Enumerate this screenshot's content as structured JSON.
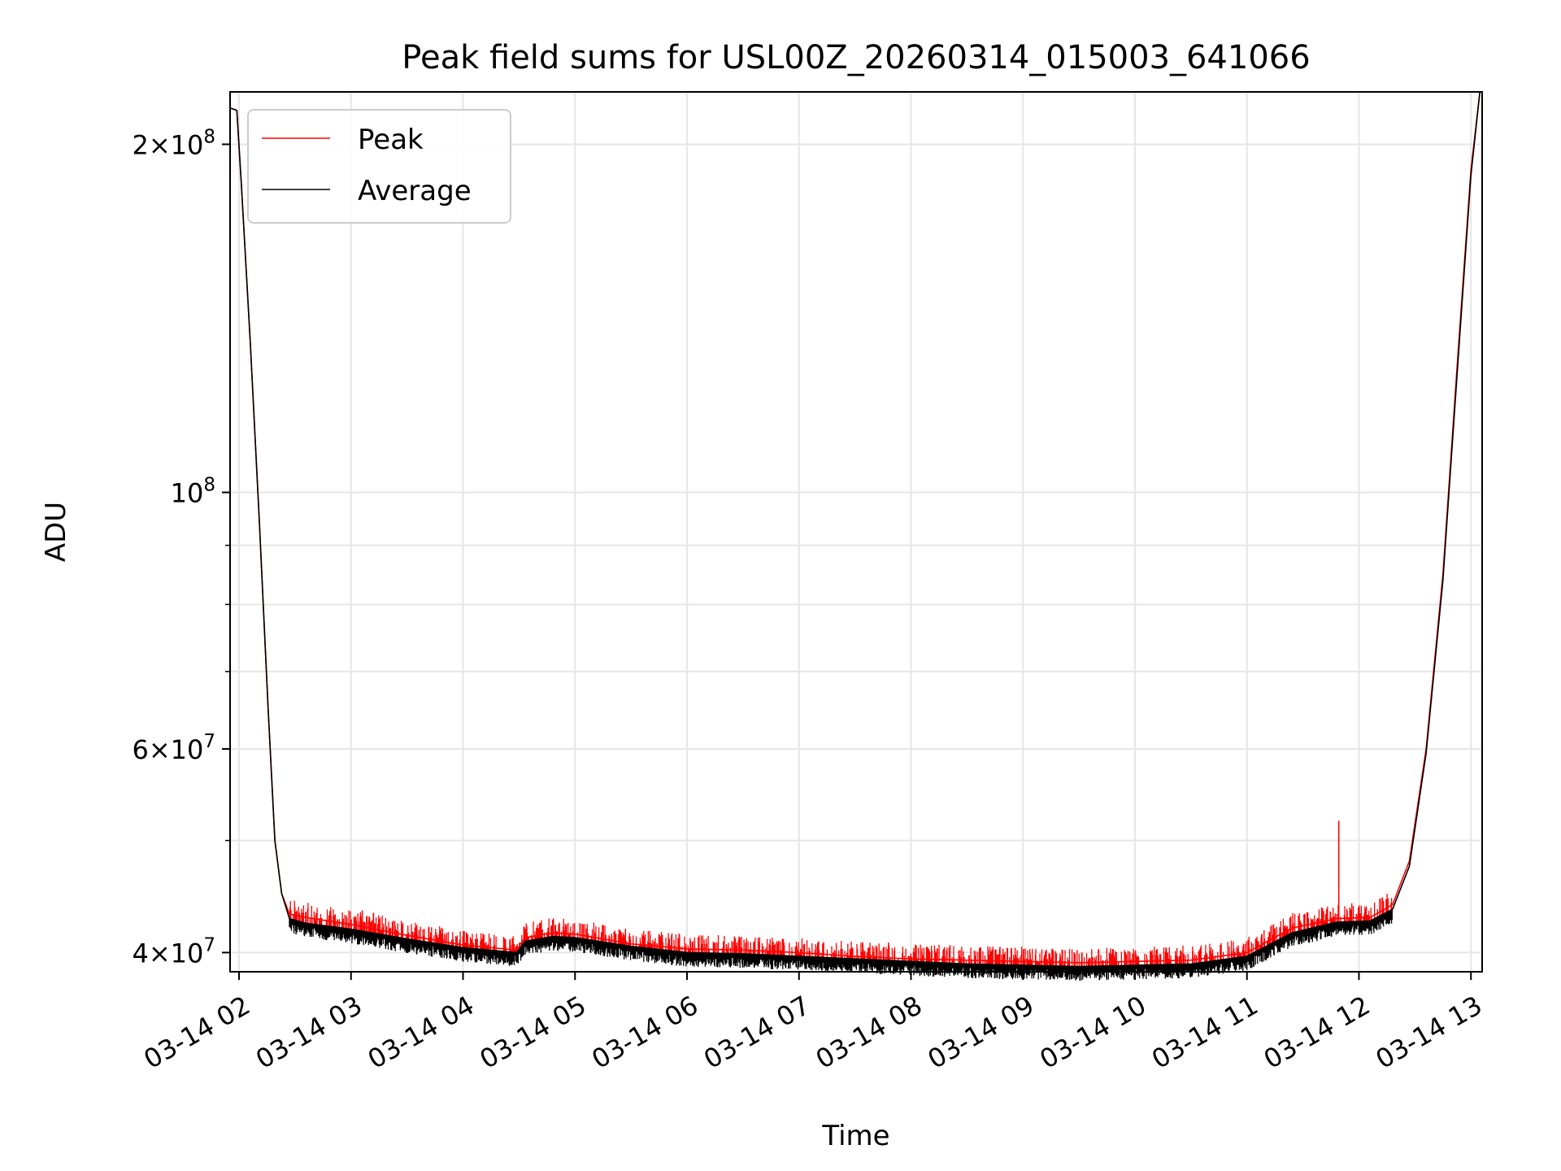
{
  "chart_data": {
    "type": "line",
    "title": "Peak field sums for USL00Z_20260314_015003_641066",
    "xlabel": "Time",
    "ylabel": "ADU",
    "yscale": "log",
    "grid": true,
    "legend_position": "top-left",
    "xlim_hours": [
      1.92,
      13.1
    ],
    "ylim": [
      38500000,
      222000000
    ],
    "x_ticks": [
      {
        "hour": 2,
        "label": "03-14 02"
      },
      {
        "hour": 3,
        "label": "03-14 03"
      },
      {
        "hour": 4,
        "label": "03-14 04"
      },
      {
        "hour": 5,
        "label": "03-14 05"
      },
      {
        "hour": 6,
        "label": "03-14 06"
      },
      {
        "hour": 7,
        "label": "03-14 07"
      },
      {
        "hour": 8,
        "label": "03-14 08"
      },
      {
        "hour": 9,
        "label": "03-14 09"
      },
      {
        "hour": 10,
        "label": "03-14 10"
      },
      {
        "hour": 11,
        "label": "03-14 11"
      },
      {
        "hour": 12,
        "label": "03-14 12"
      },
      {
        "hour": 13,
        "label": "03-14 13"
      }
    ],
    "y_ticks": [
      {
        "value": 40000000,
        "mantissa": "4",
        "exponent": "7"
      },
      {
        "value": 60000000,
        "mantissa": "6",
        "exponent": "7"
      },
      {
        "value": 100000000,
        "mantissa": "",
        "exponent": "8"
      },
      {
        "value": 200000000,
        "mantissa": "2",
        "exponent": "8"
      }
    ],
    "y_minor_ticks": [
      50000000,
      70000000,
      80000000,
      90000000
    ],
    "series": [
      {
        "name": "Peak",
        "color": "#ff0000",
        "points": [
          [
            1.92,
            215000000
          ],
          [
            1.98,
            214000000
          ],
          [
            2.02,
            185000000
          ],
          [
            2.1,
            135000000
          ],
          [
            2.18,
            95000000
          ],
          [
            2.26,
            65000000
          ],
          [
            2.32,
            50000000
          ],
          [
            2.38,
            45000000
          ],
          [
            2.45,
            43200000
          ],
          [
            2.6,
            42900000
          ],
          [
            3.0,
            42300000
          ],
          [
            3.5,
            41400000
          ],
          [
            4.0,
            40600000
          ],
          [
            4.48,
            40200000
          ],
          [
            4.55,
            41200000
          ],
          [
            4.8,
            41600000
          ],
          [
            5.0,
            41500000
          ],
          [
            5.5,
            40700000
          ],
          [
            6.0,
            40300000
          ],
          [
            6.5,
            40200000
          ],
          [
            7.0,
            40000000
          ],
          [
            7.5,
            39700000
          ],
          [
            8.0,
            39500000
          ],
          [
            8.5,
            39400000
          ],
          [
            9.0,
            39300000
          ],
          [
            9.5,
            39200000
          ],
          [
            10.0,
            39300000
          ],
          [
            10.5,
            39400000
          ],
          [
            11.0,
            40000000
          ],
          [
            11.4,
            42000000
          ],
          [
            11.8,
            42800000
          ],
          [
            12.1,
            42900000
          ],
          [
            12.3,
            44000000
          ],
          [
            12.45,
            48000000
          ],
          [
            12.6,
            60000000
          ],
          [
            12.75,
            85000000
          ],
          [
            12.88,
            130000000
          ],
          [
            13.0,
            190000000
          ],
          [
            13.08,
            222000000
          ]
        ],
        "spikes": [
          {
            "hour": 11.82,
            "value": 52000000
          },
          {
            "hour": 3.1,
            "value": 43500000
          },
          {
            "hour": 3.2,
            "value": 43300000
          },
          {
            "hour": 5.45,
            "value": 41800000
          },
          {
            "hour": 7.8,
            "value": 40800000
          }
        ]
      },
      {
        "name": "Average",
        "color": "#000000",
        "points": [
          [
            1.92,
            215000000
          ],
          [
            1.98,
            214000000
          ],
          [
            2.02,
            185000000
          ],
          [
            2.1,
            135000000
          ],
          [
            2.18,
            95000000
          ],
          [
            2.26,
            65000000
          ],
          [
            2.32,
            50000000
          ],
          [
            2.38,
            45000000
          ],
          [
            2.45,
            42800000
          ],
          [
            2.6,
            42400000
          ],
          [
            3.0,
            41900000
          ],
          [
            3.5,
            41100000
          ],
          [
            4.0,
            40400000
          ],
          [
            4.48,
            40000000
          ],
          [
            4.55,
            40900000
          ],
          [
            4.8,
            41300000
          ],
          [
            5.0,
            41200000
          ],
          [
            5.5,
            40500000
          ],
          [
            6.0,
            40000000
          ],
          [
            6.5,
            39900000
          ],
          [
            7.0,
            39700000
          ],
          [
            7.5,
            39500000
          ],
          [
            8.0,
            39300000
          ],
          [
            8.5,
            39100000
          ],
          [
            9.0,
            39000000
          ],
          [
            9.5,
            38900000
          ],
          [
            10.0,
            39000000
          ],
          [
            10.5,
            39100000
          ],
          [
            11.0,
            39700000
          ],
          [
            11.4,
            41600000
          ],
          [
            11.8,
            42500000
          ],
          [
            12.1,
            42600000
          ],
          [
            12.3,
            43600000
          ],
          [
            12.45,
            47500000
          ],
          [
            12.6,
            59500000
          ],
          [
            12.75,
            84000000
          ],
          [
            12.88,
            128000000
          ],
          [
            13.0,
            188000000
          ],
          [
            13.08,
            222000000
          ]
        ]
      }
    ]
  }
}
